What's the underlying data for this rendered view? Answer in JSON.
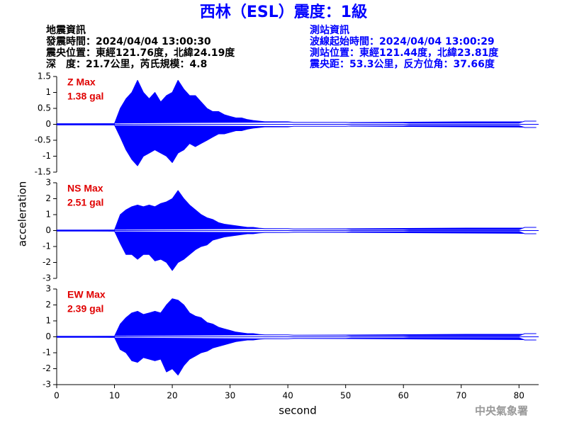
{
  "title": "西林（ESL）震度：1級",
  "info_left": [
    "地震資訊",
    "發震時間：2024/04/04 13:00:30",
    "震央位置：東經121.76度，北緯24.19度",
    "深　度：21.7公里，芮氏規模：4.8"
  ],
  "info_right": [
    "測站資訊",
    "波線起始時間：2024/04/04 13:00:29",
    "測站位置：東經121.44度，北緯23.81度",
    "震央距：53.3公里，反方位角：37.66度"
  ],
  "ylabel": "acceleration",
  "credit": "中央氣象署",
  "chart_data": [
    {
      "type": "waveform",
      "annotation": [
        "Z Max",
        "1.38 gal"
      ],
      "color": "#0000ff",
      "xlim": [
        0,
        83.4
      ],
      "ylim": [
        -1.5,
        1.5
      ],
      "yticks": [
        -1.5,
        -1,
        -0.5,
        0,
        0.5,
        1,
        1.5
      ],
      "x": [
        0,
        1,
        2,
        3,
        4,
        5,
        6,
        7,
        8,
        9,
        10,
        11,
        12,
        13,
        14,
        15,
        16,
        17,
        18,
        19,
        20,
        21,
        22,
        23,
        24,
        25,
        26,
        27,
        28,
        29,
        30,
        31,
        32,
        33,
        34,
        35,
        36,
        37,
        38,
        39,
        40,
        41,
        42,
        43,
        44,
        45,
        46,
        47,
        48,
        49,
        50,
        51,
        52,
        53,
        54,
        55,
        56,
        57,
        58,
        59,
        60,
        61,
        62,
        63,
        64,
        65,
        66,
        67,
        68,
        69,
        70,
        71,
        72,
        73,
        74,
        75,
        76,
        77,
        78,
        79,
        80,
        81,
        82,
        83
      ],
      "upper": [
        0.02,
        0.02,
        0.02,
        0.02,
        0.02,
        0.02,
        0.02,
        0.02,
        0.02,
        0.02,
        0.02,
        0.5,
        0.8,
        1.0,
        1.38,
        1.0,
        0.8,
        1.0,
        0.7,
        0.9,
        1.0,
        1.38,
        1.1,
        0.9,
        0.9,
        0.7,
        0.5,
        0.4,
        0.4,
        0.3,
        0.25,
        0.2,
        0.2,
        0.15,
        0.12,
        0.1,
        0.08,
        0.08,
        0.08,
        0.08,
        0.08,
        0.06,
        0.06,
        0.06,
        0.06,
        0.06,
        0.06,
        0.06,
        0.06,
        0.06,
        0.06,
        0.05,
        0.05,
        0.05,
        0.05,
        0.05,
        0.05,
        0.05,
        0.05,
        0.05,
        0.05,
        0.04,
        0.04,
        0.04,
        0.04,
        0.04,
        0.04,
        0.04,
        0.04,
        0.04,
        0.04,
        0.04,
        0.04,
        0.04,
        0.04,
        0.04,
        0.04,
        0.04,
        0.04,
        0.04,
        0.04,
        0.1,
        0.1,
        0.1
      ],
      "lower": [
        -0.02,
        -0.02,
        -0.02,
        -0.02,
        -0.02,
        -0.02,
        -0.02,
        -0.02,
        -0.02,
        -0.02,
        -0.02,
        -0.4,
        -0.8,
        -1.1,
        -1.3,
        -1.0,
        -0.9,
        -0.8,
        -0.9,
        -1.0,
        -1.2,
        -0.9,
        -0.8,
        -0.6,
        -0.7,
        -0.6,
        -0.5,
        -0.4,
        -0.3,
        -0.3,
        -0.25,
        -0.2,
        -0.2,
        -0.15,
        -0.12,
        -0.1,
        -0.08,
        -0.08,
        -0.08,
        -0.08,
        -0.08,
        -0.06,
        -0.06,
        -0.06,
        -0.06,
        -0.06,
        -0.06,
        -0.06,
        -0.06,
        -0.06,
        -0.06,
        -0.05,
        -0.05,
        -0.05,
        -0.05,
        -0.05,
        -0.05,
        -0.05,
        -0.05,
        -0.05,
        -0.05,
        -0.04,
        -0.04,
        -0.04,
        -0.04,
        -0.04,
        -0.04,
        -0.04,
        -0.04,
        -0.04,
        -0.04,
        -0.04,
        -0.04,
        -0.04,
        -0.04,
        -0.04,
        -0.04,
        -0.04,
        -0.04,
        -0.04,
        -0.04,
        -0.1,
        -0.1,
        -0.1
      ]
    },
    {
      "type": "waveform",
      "annotation": [
        "NS Max",
        "2.51 gal"
      ],
      "color": "#0000ff",
      "xlim": [
        0,
        83.4
      ],
      "ylim": [
        -3,
        3
      ],
      "yticks": [
        -3,
        -2,
        -1,
        0,
        1,
        2,
        3
      ],
      "x": [
        0,
        1,
        2,
        3,
        4,
        5,
        6,
        7,
        8,
        9,
        10,
        11,
        12,
        13,
        14,
        15,
        16,
        17,
        18,
        19,
        20,
        21,
        22,
        23,
        24,
        25,
        26,
        27,
        28,
        29,
        30,
        31,
        32,
        33,
        34,
        35,
        36,
        37,
        38,
        39,
        40,
        41,
        42,
        43,
        44,
        45,
        46,
        47,
        48,
        49,
        50,
        51,
        52,
        53,
        54,
        55,
        56,
        57,
        58,
        59,
        60,
        61,
        62,
        63,
        64,
        65,
        66,
        67,
        68,
        69,
        70,
        71,
        72,
        73,
        74,
        75,
        76,
        77,
        78,
        79,
        80,
        81,
        82,
        83
      ],
      "upper": [
        0.03,
        0.03,
        0.03,
        0.03,
        0.03,
        0.03,
        0.03,
        0.03,
        0.03,
        0.03,
        0.03,
        1.0,
        1.3,
        1.5,
        1.6,
        1.5,
        1.6,
        1.5,
        1.7,
        1.8,
        2.0,
        2.51,
        2.0,
        1.6,
        1.3,
        1.0,
        0.8,
        0.7,
        0.5,
        0.4,
        0.35,
        0.3,
        0.25,
        0.2,
        0.2,
        0.15,
        0.12,
        0.12,
        0.12,
        0.12,
        0.12,
        0.1,
        0.1,
        0.1,
        0.1,
        0.1,
        0.1,
        0.1,
        0.1,
        0.1,
        0.1,
        0.08,
        0.08,
        0.08,
        0.08,
        0.08,
        0.08,
        0.08,
        0.08,
        0.08,
        0.08,
        0.06,
        0.06,
        0.06,
        0.06,
        0.06,
        0.06,
        0.06,
        0.06,
        0.06,
        0.06,
        0.06,
        0.06,
        0.06,
        0.06,
        0.06,
        0.06,
        0.06,
        0.06,
        0.06,
        0.06,
        0.2,
        0.2,
        0.2
      ],
      "lower": [
        -0.03,
        -0.03,
        -0.03,
        -0.03,
        -0.03,
        -0.03,
        -0.03,
        -0.03,
        -0.03,
        -0.03,
        -0.03,
        -0.8,
        -1.5,
        -1.5,
        -1.8,
        -1.5,
        -1.5,
        -1.9,
        -1.8,
        -2.0,
        -2.5,
        -2.0,
        -1.8,
        -1.5,
        -1.2,
        -1.0,
        -0.9,
        -0.6,
        -0.5,
        -0.4,
        -0.35,
        -0.3,
        -0.25,
        -0.2,
        -0.2,
        -0.15,
        -0.12,
        -0.12,
        -0.12,
        -0.12,
        -0.12,
        -0.1,
        -0.1,
        -0.1,
        -0.1,
        -0.1,
        -0.1,
        -0.1,
        -0.1,
        -0.1,
        -0.1,
        -0.08,
        -0.08,
        -0.08,
        -0.08,
        -0.08,
        -0.08,
        -0.08,
        -0.08,
        -0.08,
        -0.08,
        -0.06,
        -0.06,
        -0.06,
        -0.06,
        -0.06,
        -0.06,
        -0.06,
        -0.06,
        -0.06,
        -0.06,
        -0.06,
        -0.06,
        -0.06,
        -0.06,
        -0.06,
        -0.06,
        -0.06,
        -0.06,
        -0.06,
        -0.06,
        -0.2,
        -0.2,
        -0.2
      ]
    },
    {
      "type": "waveform",
      "annotation": [
        "EW Max",
        "2.39 gal"
      ],
      "color": "#0000ff",
      "xlim": [
        0,
        83.4
      ],
      "ylim": [
        -3,
        3
      ],
      "yticks": [
        -3,
        -2,
        -1,
        0,
        1,
        2,
        3
      ],
      "xticks": [
        0,
        10,
        20,
        30,
        40,
        50,
        60,
        70,
        80
      ],
      "xlabel": "second",
      "x": [
        0,
        1,
        2,
        3,
        4,
        5,
        6,
        7,
        8,
        9,
        10,
        11,
        12,
        13,
        14,
        15,
        16,
        17,
        18,
        19,
        20,
        21,
        22,
        23,
        24,
        25,
        26,
        27,
        28,
        29,
        30,
        31,
        32,
        33,
        34,
        35,
        36,
        37,
        38,
        39,
        40,
        41,
        42,
        43,
        44,
        45,
        46,
        47,
        48,
        49,
        50,
        51,
        52,
        53,
        54,
        55,
        56,
        57,
        58,
        59,
        60,
        61,
        62,
        63,
        64,
        65,
        66,
        67,
        68,
        69,
        70,
        71,
        72,
        73,
        74,
        75,
        76,
        77,
        78,
        79,
        80,
        81,
        82,
        83
      ],
      "upper": [
        0.03,
        0.03,
        0.03,
        0.03,
        0.03,
        0.03,
        0.03,
        0.03,
        0.03,
        0.03,
        0.03,
        0.8,
        1.2,
        1.5,
        1.6,
        1.4,
        1.5,
        1.6,
        1.5,
        2.0,
        2.39,
        2.3,
        2.0,
        1.5,
        1.3,
        1.2,
        0.9,
        0.8,
        0.6,
        0.5,
        0.4,
        0.3,
        0.25,
        0.2,
        0.2,
        0.15,
        0.12,
        0.12,
        0.12,
        0.12,
        0.12,
        0.1,
        0.1,
        0.1,
        0.1,
        0.1,
        0.1,
        0.1,
        0.1,
        0.1,
        0.1,
        0.08,
        0.08,
        0.08,
        0.08,
        0.08,
        0.08,
        0.08,
        0.08,
        0.08,
        0.08,
        0.06,
        0.06,
        0.06,
        0.06,
        0.06,
        0.06,
        0.06,
        0.06,
        0.06,
        0.06,
        0.06,
        0.06,
        0.06,
        0.06,
        0.06,
        0.06,
        0.06,
        0.06,
        0.06,
        0.06,
        0.2,
        0.2,
        0.2
      ],
      "lower": [
        -0.03,
        -0.03,
        -0.03,
        -0.03,
        -0.03,
        -0.03,
        -0.03,
        -0.03,
        -0.03,
        -0.03,
        -0.03,
        -0.8,
        -1.0,
        -1.5,
        -1.6,
        -1.3,
        -1.4,
        -1.5,
        -1.4,
        -2.2,
        -2.0,
        -2.4,
        -1.8,
        -1.4,
        -1.2,
        -1.0,
        -0.9,
        -0.7,
        -0.6,
        -0.5,
        -0.4,
        -0.3,
        -0.25,
        -0.2,
        -0.2,
        -0.15,
        -0.12,
        -0.12,
        -0.12,
        -0.12,
        -0.12,
        -0.1,
        -0.1,
        -0.1,
        -0.1,
        -0.1,
        -0.1,
        -0.1,
        -0.1,
        -0.1,
        -0.1,
        -0.08,
        -0.08,
        -0.08,
        -0.08,
        -0.08,
        -0.08,
        -0.08,
        -0.08,
        -0.08,
        -0.08,
        -0.06,
        -0.06,
        -0.06,
        -0.06,
        -0.06,
        -0.06,
        -0.06,
        -0.06,
        -0.06,
        -0.06,
        -0.06,
        -0.06,
        -0.06,
        -0.06,
        -0.06,
        -0.06,
        -0.06,
        -0.06,
        -0.06,
        -0.06,
        -0.2,
        -0.2,
        -0.2
      ]
    }
  ]
}
